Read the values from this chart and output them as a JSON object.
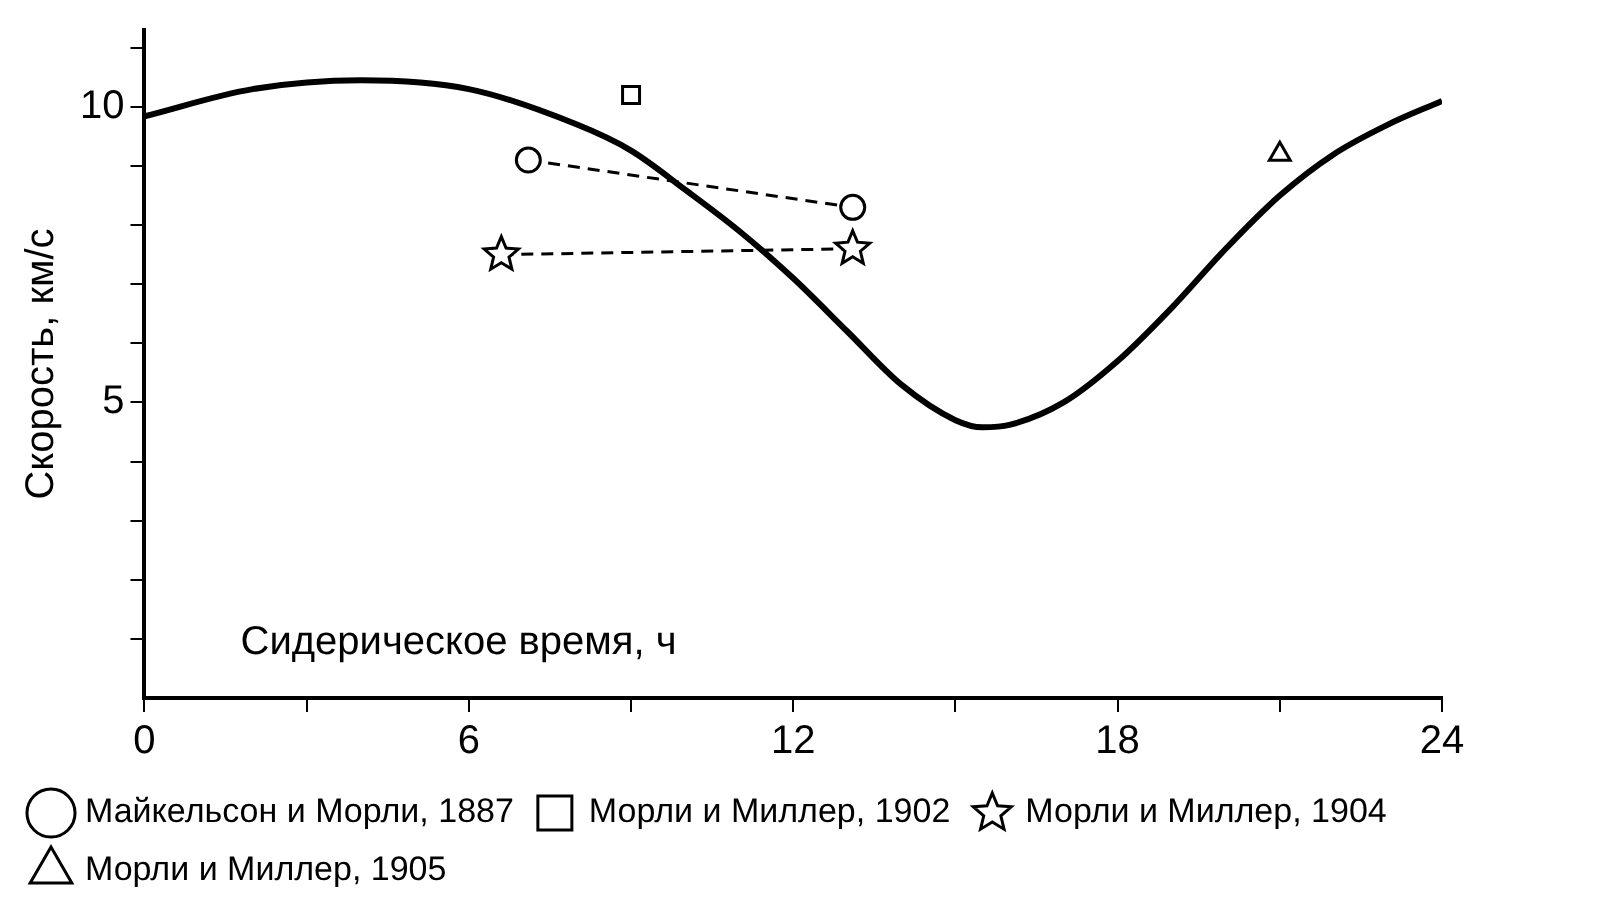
{
  "chart_data": {
    "type": "line",
    "xlabel": "Сидерическое время, ч",
    "ylabel": "Скорость, км/с",
    "xlim": [
      0,
      24
    ],
    "xticks": [
      0,
      {
        "value": 3,
        "label": null
      },
      6,
      {
        "value": 9,
        "label": null
      },
      12,
      {
        "value": 15,
        "label": null
      },
      18,
      {
        "value": 21,
        "label": null
      },
      24
    ],
    "ylim": [
      0,
      11.3
    ],
    "yticks": [
      {
        "value": 1,
        "label": null
      },
      {
        "value": 2,
        "label": null
      },
      {
        "value": 3,
        "label": null
      },
      {
        "value": 4,
        "label": null
      },
      5,
      {
        "value": 6,
        "label": null
      },
      {
        "value": 7,
        "label": null
      },
      {
        "value": 8,
        "label": null
      },
      {
        "value": 9,
        "label": null
      },
      10,
      {
        "value": 11,
        "label": null
      }
    ],
    "grid": false,
    "legend": "bottom",
    "series": [
      {
        "color": "#000000",
        "marker": "none",
        "line_style": "solid",
        "x": [
          0,
          2,
          4,
          6,
          8,
          9,
          10,
          11,
          12,
          13,
          14,
          15,
          15.5,
          16,
          17,
          18,
          19,
          20,
          21,
          22,
          23,
          24
        ],
        "values": [
          9.84,
          10.3,
          10.45,
          10.3,
          9.7,
          9.26,
          8.6,
          7.9,
          7.1,
          6.2,
          5.3,
          4.7,
          4.58,
          4.62,
          5.0,
          5.7,
          6.6,
          7.6,
          8.5,
          9.2,
          9.7,
          10.1
        ]
      },
      {
        "name": "Майкельсон и Морли, 1887",
        "color": "#000000",
        "marker": "circle",
        "line_style": "dashed",
        "x": [
          7.1,
          13.1
        ],
        "values": [
          9.1,
          8.3
        ]
      },
      {
        "type": "scatter",
        "name": "Морли и Миллер, 1902",
        "color": "#000000",
        "marker": "square",
        "x": [
          9
        ],
        "values": [
          10.2
        ]
      },
      {
        "name": "Морли и Миллер, 1904",
        "color": "#000000",
        "marker": "star",
        "line_style": "dashed",
        "x": [
          6.6,
          13.1
        ],
        "values": [
          7.5,
          7.6
        ]
      },
      {
        "type": "scatter",
        "name": "Морли и Миллер, 1905",
        "color": "#000000",
        "marker": "triangle",
        "x": [
          21
        ],
        "values": [
          9.2
        ]
      }
    ]
  }
}
